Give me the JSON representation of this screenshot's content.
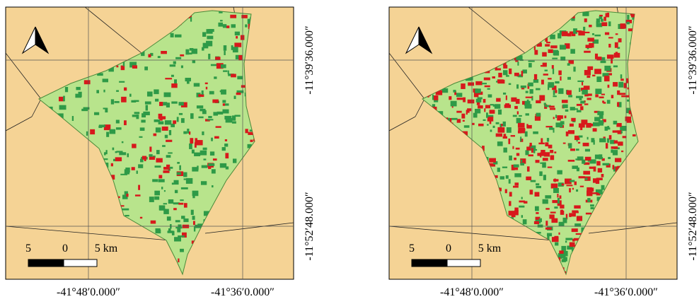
{
  "maps": [
    {
      "x_labels": [
        "-41°48′0.000″",
        "-41°36′0.000″"
      ],
      "y_labels": [
        "-11°39′36.000″",
        "-11°52′48.000″"
      ],
      "scale_labels": [
        "5",
        "0",
        "5 km"
      ]
    },
    {
      "x_labels": [
        "-41°48′0.000″",
        "-41°36′0.000″"
      ],
      "y_labels": [
        "-11°39′36.000″",
        "-11°52′48.000″"
      ],
      "scale_labels": [
        "5",
        "0",
        "5 km"
      ]
    }
  ]
}
